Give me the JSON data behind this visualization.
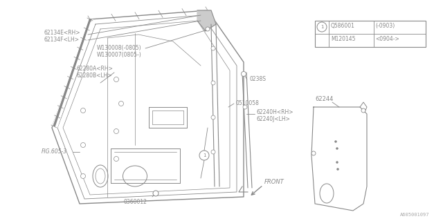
{
  "bg_color": "#ffffff",
  "line_color": "#888888",
  "text_color": "#888888",
  "fig_width": 6.4,
  "fig_height": 3.2,
  "dpi": 100,
  "labels": {
    "part1a": "62134E<RH>",
    "part1b": "62134F<LH>",
    "part2a": "W130008(-0805)",
    "part2b": "W130007(0805-)",
    "part3a": "62280A<RH>",
    "part3b": "62280B<LH>",
    "part4": "0238S",
    "part5": "0510058",
    "part6a": "62240H<RH>",
    "part6b": "62240J<LH>",
    "part7": "62244",
    "part8": "FIG.605-3",
    "part9": "0360012",
    "fig_ref": "A605001097",
    "front": "FRONT",
    "circle1_label1": "Q586001",
    "circle1_label1b": "(-0903)",
    "circle1_label2": "M120145",
    "circle1_label2b": "<0904->"
  }
}
